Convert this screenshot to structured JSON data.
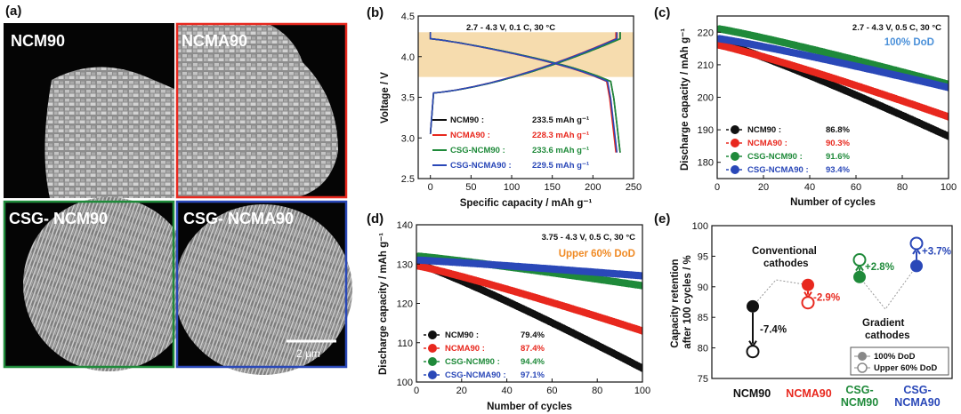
{
  "colors": {
    "ncm90": "#111111",
    "ncma90": "#e8281e",
    "csg_ncm90": "#1f8a3a",
    "csg_ncma90": "#2a48b8",
    "dod_blue": "#4a90d9",
    "dod_orange": "#f08a24",
    "band": "#f6dcae"
  },
  "panel_a": {
    "label": "(a)",
    "tiles": [
      {
        "name": "NCM90",
        "border": "#000000"
      },
      {
        "name": "NCMA90",
        "border": "#e8281e"
      },
      {
        "name": "CSG- NCM90",
        "border": "#1f8a3a"
      },
      {
        "name": "CSG- NCMA90",
        "border": "#2a48b8"
      }
    ],
    "scalebar": "2 μm"
  },
  "chart_data": [
    {
      "panel": "(b)",
      "type": "line",
      "condition": "2.7 - 4.3 V, 0.1 C, 30 °C",
      "xlabel": "Specific capacity / mAh g⁻¹",
      "ylabel": "Voltage / V",
      "xlim": [
        -15,
        250
      ],
      "ylim": [
        2.5,
        4.5
      ],
      "xticks": [
        "0",
        "50",
        "100",
        "150",
        "200",
        "250"
      ],
      "yticks": [
        "2.5",
        "3.0",
        "3.5",
        "4.0",
        "4.5"
      ],
      "shaded_band_v": [
        3.75,
        4.3
      ],
      "series": [
        {
          "name": "NCM90 :",
          "value": "233.5 mAh g⁻¹",
          "capacity": 233.5
        },
        {
          "name": "NCMA90 :",
          "value": "228.3 mAh g⁻¹",
          "capacity": 228.3
        },
        {
          "name": "CSG-NCM90 :",
          "value": "233.6 mAh g⁻¹",
          "capacity": 233.6
        },
        {
          "name": "CSG-NCMA90 :",
          "value": "229.5 mAh g⁻¹",
          "capacity": 229.5
        }
      ]
    },
    {
      "panel": "(c)",
      "type": "scatter",
      "condition": "2.7 - 4.3 V, 0.5 C, 30 °C",
      "dod": "100% DoD",
      "xlabel": "Number of cycles",
      "ylabel": "Discharge capacity / mAh g⁻¹",
      "xlim": [
        0,
        100
      ],
      "ylim": [
        175,
        225
      ],
      "xticks": [
        "0",
        "20",
        "40",
        "60",
        "80",
        "100"
      ],
      "yticks": [
        "180",
        "190",
        "200",
        "210",
        "220"
      ],
      "series": [
        {
          "name": "NCM90 :",
          "value": "86.8%",
          "start": 217,
          "end": 188
        },
        {
          "name": "NCMA90 :",
          "value": "90.3%",
          "start": 216,
          "end": 194
        },
        {
          "name": "CSG-NCM90 :",
          "value": "91.6%",
          "start": 221,
          "end": 204
        },
        {
          "name": "CSG-NCMA90 :",
          "value": "93.4%",
          "start": 218,
          "end": 203
        }
      ]
    },
    {
      "panel": "(d)",
      "type": "scatter",
      "condition": "3.75 - 4.3 V, 0.5 C, 30 °C",
      "dod": "Upper 60% DoD",
      "xlabel": "Number of cycles",
      "ylabel": "Discharge capacity / mAh g⁻¹",
      "xlim": [
        0,
        100
      ],
      "ylim": [
        100,
        140
      ],
      "xticks": [
        "0",
        "20",
        "40",
        "60",
        "80",
        "100"
      ],
      "yticks": [
        "100",
        "110",
        "120",
        "130",
        "140"
      ],
      "series": [
        {
          "name": "NCM90 :",
          "value": "79.4%",
          "start": 130,
          "end": 103.5
        },
        {
          "name": "NCMA90 :",
          "value": "87.4%",
          "start": 129.5,
          "end": 113
        },
        {
          "name": "CSG-NCM90 :",
          "value": "94.4%",
          "start": 132,
          "end": 124.5
        },
        {
          "name": "CSG-NCMA90 :",
          "value": "97.1%",
          "start": 131,
          "end": 127
        }
      ]
    },
    {
      "panel": "(e)",
      "type": "scatter",
      "ylabel": "Capacity retention after 100 cycles / %",
      "ylim": [
        75,
        100
      ],
      "yticks": [
        "75",
        "80",
        "85",
        "90",
        "95",
        "100"
      ],
      "categories": [
        "NCM90",
        "NCMA90",
        "CSG-NCM90",
        "CSG-NCMA90"
      ],
      "full_dod": [
        86.8,
        90.3,
        91.6,
        93.4
      ],
      "upper_dod": [
        79.4,
        87.4,
        94.4,
        97.1
      ],
      "changes": [
        "-7.4%",
        "-2.9%",
        "+2.8%",
        "+3.7%"
      ],
      "group_labels": [
        "Conventional cathodes",
        "Gradient cathodes"
      ],
      "legend": [
        "100% DoD",
        "Upper 60% DoD"
      ]
    }
  ]
}
